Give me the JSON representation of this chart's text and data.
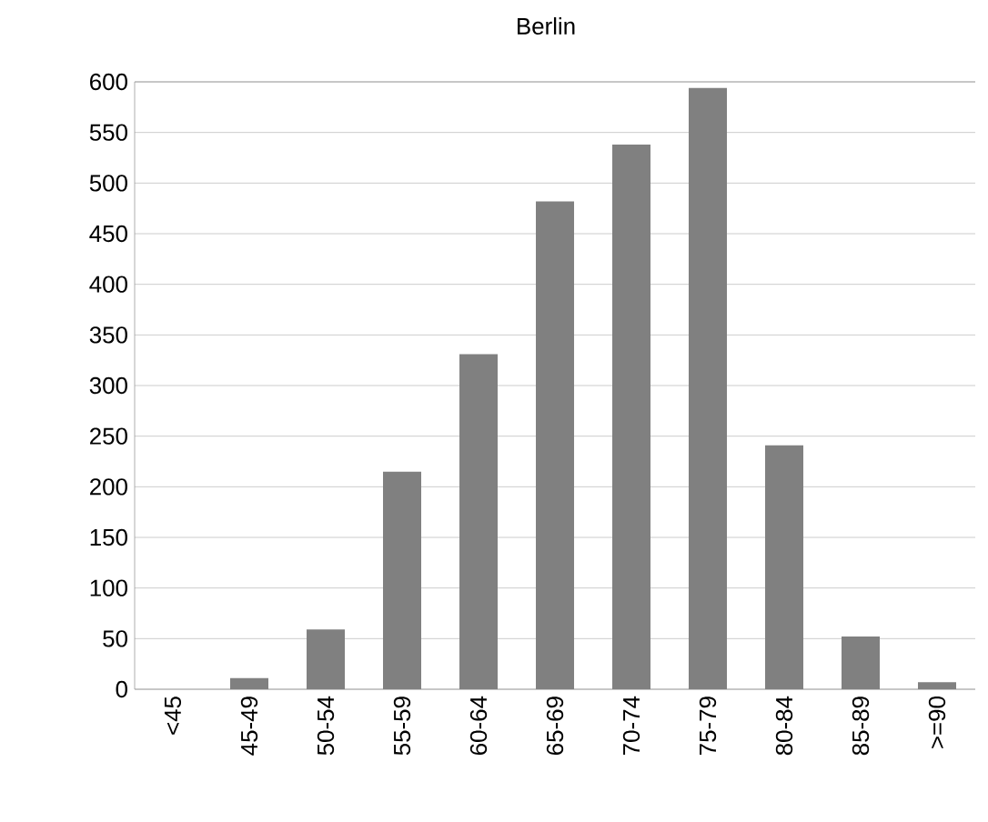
{
  "chart_data": {
    "type": "bar",
    "title": "Berlin",
    "categories": [
      "<45",
      "45-49",
      "50-54",
      "55-59",
      "60-64",
      "65-69",
      "70-74",
      "75-79",
      "80-84",
      "85-89",
      ">=90"
    ],
    "values": [
      0,
      11,
      59,
      215,
      331,
      482,
      538,
      594,
      241,
      52,
      7
    ],
    "color": "#808080",
    "ylim": [
      0,
      600
    ],
    "yticks": [
      0,
      50,
      100,
      150,
      200,
      250,
      300,
      350,
      400,
      450,
      500,
      550,
      600
    ],
    "grid": "y"
  }
}
